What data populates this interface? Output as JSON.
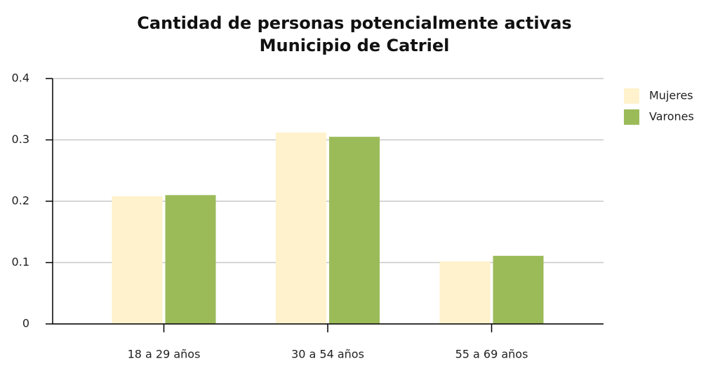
{
  "chart_data": {
    "type": "bar",
    "title": [
      "Cantidad de personas potencialmente activas",
      "Municipio de Catriel"
    ],
    "categories": [
      "18 a 29 años",
      "30 a 54 años",
      "55 a 69 años"
    ],
    "series": [
      {
        "name": "Mujeres",
        "color": "#fff2cc",
        "values": [
          0.208,
          0.312,
          0.102
        ]
      },
      {
        "name": "Varones",
        "color": "#9bbb59",
        "values": [
          0.21,
          0.305,
          0.111
        ]
      }
    ],
    "ylim": [
      0,
      0.4
    ],
    "yticks": [
      0,
      0.1,
      0.2,
      0.3,
      0.4
    ],
    "grid": true,
    "legend": "right"
  }
}
